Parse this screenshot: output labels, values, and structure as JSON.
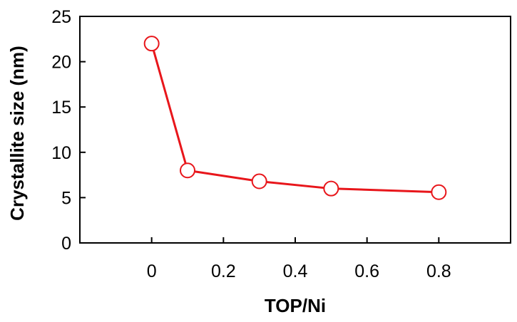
{
  "chart_data": {
    "type": "line",
    "title": "",
    "xlabel": "TOP/Ni",
    "ylabel": "Crystallite size (nm)",
    "x": [
      0,
      0.1,
      0.3,
      0.5,
      0.8
    ],
    "series": [
      {
        "values": [
          22,
          8,
          6.8,
          6,
          5.6
        ]
      }
    ],
    "xlim": [
      -0.2,
      1.0
    ],
    "ylim": [
      0,
      25
    ],
    "xticks": [
      "0",
      "0.2",
      "0.4",
      "0.6",
      "0.8"
    ],
    "yticks": [
      "0",
      "5",
      "10",
      "15",
      "20",
      "25"
    ],
    "marker": "open-circle",
    "grid": false,
    "legend": "none",
    "colors": {
      "line": "#e8161b",
      "marker_stroke": "#e8161b",
      "marker_fill": "#ffffff",
      "axis": "#000000"
    }
  }
}
